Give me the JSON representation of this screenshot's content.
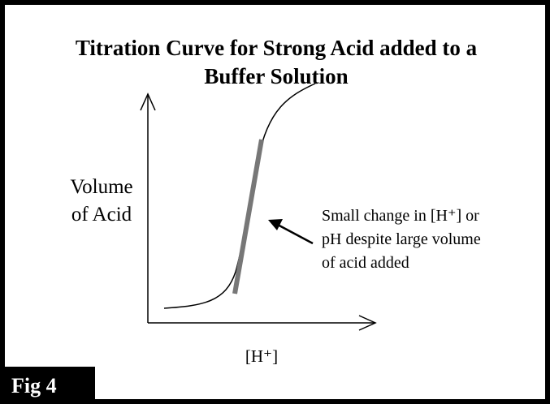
{
  "figure_label": "Fig 4",
  "title_lines": [
    "Titration Curve for Strong Acid added to a",
    "Buffer Solution"
  ],
  "y_axis_label_lines": [
    "Volume",
    "of Acid"
  ],
  "x_axis_label": "[H⁺]",
  "annotation_lines": [
    "Small change in [H⁺] or",
    "pH despite large volume",
    "of acid added"
  ]
}
